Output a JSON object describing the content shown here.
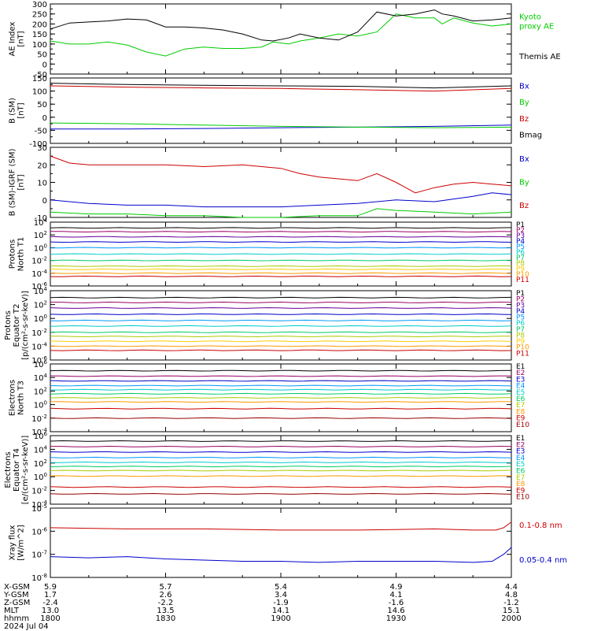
{
  "chart_data": [
    {
      "type": "line",
      "ylabel": "AE Index\n[nT]",
      "ylim": [
        -50,
        300
      ],
      "yticks": [
        -50,
        0,
        50,
        100,
        150,
        200,
        250,
        300
      ],
      "series": [
        {
          "name": "Kyoto\nproxy AE",
          "color": "#00cc00",
          "x": [
            0,
            5,
            10,
            15,
            20,
            25,
            30,
            35,
            40,
            45,
            50,
            55,
            58,
            62,
            65,
            70,
            75,
            80,
            85,
            90,
            95,
            100,
            102,
            105,
            110,
            115,
            120
          ],
          "y": [
            115,
            100,
            100,
            110,
            95,
            60,
            40,
            75,
            85,
            78,
            78,
            85,
            110,
            100,
            115,
            130,
            150,
            140,
            160,
            250,
            230,
            230,
            200,
            230,
            205,
            190,
            200
          ]
        },
        {
          "name": "Themis AE",
          "color": "#000000",
          "x": [
            0,
            5,
            10,
            15,
            20,
            25,
            30,
            35,
            40,
            45,
            50,
            55,
            58,
            62,
            65,
            70,
            75,
            80,
            85,
            90,
            95,
            100,
            102,
            105,
            110,
            115,
            120
          ],
          "y": [
            175,
            205,
            210,
            215,
            225,
            220,
            185,
            185,
            180,
            170,
            150,
            120,
            115,
            130,
            150,
            130,
            120,
            160,
            260,
            240,
            250,
            270,
            250,
            240,
            215,
            220,
            230
          ]
        }
      ]
    },
    {
      "type": "line",
      "ylabel": "B (SM)\n[nT]",
      "ylim": [
        -100,
        150
      ],
      "yticks": [
        -100,
        -50,
        0,
        50,
        100,
        150
      ],
      "series": [
        {
          "name": "Bx",
          "color": "#0000cc",
          "x": [
            0,
            20,
            40,
            60,
            80,
            100,
            120
          ],
          "y": [
            -45,
            -45,
            -43,
            -40,
            -38,
            -35,
            -30
          ]
        },
        {
          "name": "By",
          "color": "#00cc00",
          "x": [
            0,
            20,
            40,
            60,
            80,
            100,
            120
          ],
          "y": [
            -22,
            -25,
            -30,
            -35,
            -38,
            -40,
            -38
          ]
        },
        {
          "name": "Bz",
          "color": "#cc0000",
          "x": [
            0,
            20,
            40,
            60,
            80,
            100,
            120
          ],
          "y": [
            120,
            115,
            112,
            110,
            105,
            100,
            110
          ]
        },
        {
          "name": "Bmag",
          "color": "#000000",
          "x": [
            0,
            20,
            40,
            60,
            80,
            100,
            120
          ],
          "y": [
            130,
            125,
            122,
            120,
            118,
            112,
            120
          ]
        }
      ]
    },
    {
      "type": "line",
      "ylabel": "B (SM)-IGRF (SM)\n[nT]",
      "ylim": [
        -10,
        30
      ],
      "yticks": [
        -10,
        0,
        10,
        20,
        30
      ],
      "series": [
        {
          "name": "Bx",
          "color": "#0000cc",
          "x": [
            0,
            10,
            20,
            30,
            40,
            50,
            60,
            70,
            80,
            90,
            100,
            110,
            115,
            120
          ],
          "y": [
            0,
            -2,
            -3,
            -3,
            -4,
            -4,
            -4,
            -3,
            -2,
            0,
            -1,
            2,
            4,
            3
          ]
        },
        {
          "name": "By",
          "color": "#00cc00",
          "x": [
            0,
            10,
            20,
            30,
            40,
            50,
            60,
            70,
            80,
            85,
            90,
            100,
            110,
            120
          ],
          "y": [
            -7,
            -8,
            -8,
            -9,
            -9,
            -10,
            -10,
            -9,
            -9,
            -5,
            -6,
            -7,
            -8,
            -7
          ]
        },
        {
          "name": "Bz",
          "color": "#cc0000",
          "x": [
            0,
            5,
            10,
            20,
            30,
            40,
            50,
            60,
            65,
            70,
            80,
            85,
            90,
            95,
            100,
            105,
            110,
            115,
            120
          ],
          "y": [
            25,
            21,
            20,
            20,
            20,
            19,
            20,
            18,
            15,
            13,
            11,
            15,
            10,
            4,
            7,
            9,
            10,
            9,
            8
          ]
        }
      ]
    },
    {
      "type": "line",
      "log": true,
      "ylabel": "Protons\nNorth T1",
      "ylim_exp": [
        -6,
        4
      ],
      "ytick_exps": [
        -6,
        -4,
        -2,
        0,
        2,
        4
      ],
      "series": [
        {
          "name": "P1",
          "color": "#000000",
          "y_exp": 3.1
        },
        {
          "name": "P2",
          "color": "#990066",
          "y_exp": 2.5
        },
        {
          "name": "P3",
          "color": "#660099",
          "y_exp": 1.7
        },
        {
          "name": "P4",
          "color": "#0000cc",
          "y_exp": 0.9
        },
        {
          "name": "P5",
          "color": "#0099ff",
          "y_exp": 0.0
        },
        {
          "name": "P6",
          "color": "#00cccc",
          "y_exp": -1.0
        },
        {
          "name": "P7",
          "color": "#00cc66",
          "y_exp": -2.0
        },
        {
          "name": "P8",
          "color": "#aacc00",
          "y_exp": -2.9
        },
        {
          "name": "P9",
          "color": "#ffcc00",
          "y_exp": -3.4
        },
        {
          "name": "P10",
          "color": "#ff9900",
          "y_exp": -4.0
        },
        {
          "name": "P11",
          "color": "#cc0000",
          "y_exp": -4.5
        }
      ]
    },
    {
      "type": "line",
      "log": true,
      "ylabel": "Protons\nEquator T2\n[p/(cm²-s-sr-keV)]",
      "ylim_exp": [
        -6,
        4
      ],
      "ytick_exps": [
        -6,
        -4,
        -2,
        0,
        2,
        4
      ],
      "series": [
        {
          "name": "P1",
          "color": "#000000",
          "y_exp": 3.0
        },
        {
          "name": "P2",
          "color": "#990066",
          "y_exp": 2.3
        },
        {
          "name": "P3",
          "color": "#660099",
          "y_exp": 1.5
        },
        {
          "name": "P4",
          "color": "#0000cc",
          "y_exp": 0.6
        },
        {
          "name": "P5",
          "color": "#0099ff",
          "y_exp": -0.3
        },
        {
          "name": "P6",
          "color": "#00cccc",
          "y_exp": -1.1
        },
        {
          "name": "P7",
          "color": "#00cc66",
          "y_exp": -2.0
        },
        {
          "name": "P8",
          "color": "#aacc00",
          "y_exp": -2.6
        },
        {
          "name": "P9",
          "color": "#ffcc00",
          "y_exp": -3.3
        },
        {
          "name": "P10",
          "color": "#ff9900",
          "y_exp": -4.0
        },
        {
          "name": "P11",
          "color": "#cc0000",
          "y_exp": -4.6
        }
      ]
    },
    {
      "type": "line",
      "log": true,
      "ylabel": "Electrons\nNorth T3",
      "ylim_exp": [
        -4,
        6
      ],
      "ytick_exps": [
        -4,
        -2,
        0,
        2,
        4,
        6
      ],
      "series": [
        {
          "name": "E1",
          "color": "#000000",
          "y_exp": 5.0
        },
        {
          "name": "E2",
          "color": "#990066",
          "y_exp": 4.2
        },
        {
          "name": "E3",
          "color": "#0000cc",
          "y_exp": 3.5
        },
        {
          "name": "E4",
          "color": "#0099ff",
          "y_exp": 2.8
        },
        {
          "name": "E5",
          "color": "#00cccc",
          "y_exp": 2.2
        },
        {
          "name": "E6",
          "color": "#00cc66",
          "y_exp": 1.6
        },
        {
          "name": "E7",
          "color": "#aacc00",
          "y_exp": 1.0
        },
        {
          "name": "E8",
          "color": "#ff9900",
          "y_exp": 0.4
        },
        {
          "name": "E9",
          "color": "#cc0000",
          "y_exp": -0.6
        },
        {
          "name": "E10",
          "color": "#990000",
          "y_exp": -2.0
        }
      ]
    },
    {
      "type": "line",
      "log": true,
      "ylabel": "Electrons\nEquator T4\n[e/(cm²-s-sr-keV)]",
      "ylim_exp": [
        -4,
        6
      ],
      "ytick_exps": [
        -4,
        -2,
        0,
        2,
        4,
        6
      ],
      "series": [
        {
          "name": "E1",
          "color": "#000000",
          "y_exp": 5.2
        },
        {
          "name": "E2",
          "color": "#990066",
          "y_exp": 4.4
        },
        {
          "name": "E3",
          "color": "#0000cc",
          "y_exp": 3.6
        },
        {
          "name": "E4",
          "color": "#0099ff",
          "y_exp": 2.8
        },
        {
          "name": "E5",
          "color": "#00cccc",
          "y_exp": 2.1
        },
        {
          "name": "E6",
          "color": "#00cc66",
          "y_exp": 1.5
        },
        {
          "name": "E7",
          "color": "#aacc00",
          "y_exp": 0.9
        },
        {
          "name": "E8",
          "color": "#ff9900",
          "y_exp": 0.1
        },
        {
          "name": "E9",
          "color": "#cc0000",
          "y_exp": -1.5
        },
        {
          "name": "E10",
          "color": "#990000",
          "y_exp": -2.5
        }
      ]
    },
    {
      "type": "line",
      "log": true,
      "ylabel": "Xray flux\n[W/m^2]",
      "ylim_exp": [
        -8,
        -5
      ],
      "ytick_exps": [
        -8,
        -7,
        -6,
        -5
      ],
      "series": [
        {
          "name": "0.1-0.8 nm",
          "color": "#cc0000",
          "x": [
            0,
            20,
            40,
            60,
            80,
            100,
            110,
            116,
            118,
            120
          ],
          "y_exp": [
            -5.85,
            -5.9,
            -5.9,
            -5.95,
            -5.95,
            -5.9,
            -5.95,
            -5.95,
            -5.85,
            -5.6
          ]
        },
        {
          "name": "0.05-0.4 nm",
          "color": "#0000cc",
          "x": [
            0,
            10,
            20,
            30,
            40,
            50,
            60,
            70,
            80,
            90,
            100,
            110,
            115,
            118,
            120
          ],
          "y_exp": [
            -7.1,
            -7.15,
            -7.1,
            -7.2,
            -7.25,
            -7.3,
            -7.3,
            -7.35,
            -7.3,
            -7.3,
            -7.3,
            -7.35,
            -7.3,
            -7.0,
            -6.7
          ]
        }
      ]
    }
  ],
  "x_axis": {
    "range_min": [
      0,
      120
    ],
    "tick_min": [
      0,
      30,
      60,
      90,
      120
    ],
    "rows": [
      {
        "label": "X-GSM",
        "values": [
          "5.9",
          "5.7",
          "5.4",
          "4.9",
          "4.4"
        ]
      },
      {
        "label": "Y-GSM",
        "values": [
          "1.7",
          "2.6",
          "3.4",
          "4.1",
          "4.8"
        ]
      },
      {
        "label": "Z-GSM",
        "values": [
          "-2.4",
          "-2.2",
          "-1.9",
          "-1.6",
          "-1.2"
        ]
      },
      {
        "label": "MLT",
        "values": [
          "13.0",
          "13.5",
          "14.1",
          "14.6",
          "15.1"
        ]
      },
      {
        "label": "hhmm",
        "values": [
          "1800",
          "1830",
          "1900",
          "1930",
          "2000"
        ]
      }
    ],
    "date": "2024 Jul 04"
  }
}
